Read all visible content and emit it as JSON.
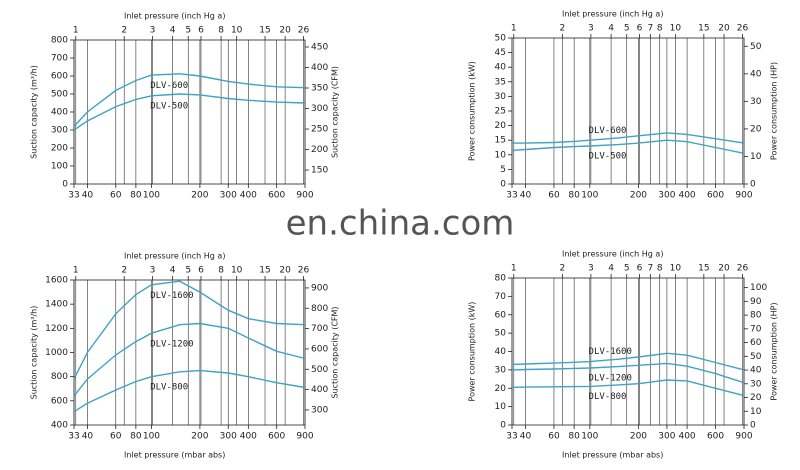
{
  "watermark": "en.china.com",
  "chart_data": [
    {
      "type": "line",
      "x2label": "Inlet pressure (inch Hg a)",
      "ylabel": "Suction capacity (m³/h)",
      "y2label": "Suction capacity (CFM)",
      "xscale": "log",
      "x2scale": "log",
      "grid": "x",
      "color": "#3fa3c4",
      "xlim": [
        33,
        900
      ],
      "xticks": [
        33,
        40,
        60,
        80,
        100,
        200,
        300,
        400,
        600,
        900
      ],
      "x2lim": [
        0.975,
        26.58
      ],
      "x2ticks": [
        1,
        2,
        3,
        4,
        5,
        6,
        8,
        10,
        15,
        20,
        26
      ],
      "ylim": [
        0,
        800
      ],
      "yticks": [
        0,
        100,
        200,
        300,
        400,
        500,
        600,
        700,
        800
      ],
      "y2lim": [
        116,
        467
      ],
      "y2ticks": [
        150,
        200,
        250,
        300,
        350,
        400,
        450
      ],
      "x": [
        33,
        40,
        60,
        80,
        100,
        150,
        200,
        300,
        400,
        600,
        900
      ],
      "series": [
        {
          "name": "DLV-600",
          "color": "#3fa3c4",
          "values": [
            320,
            400,
            520,
            575,
            605,
            612,
            600,
            570,
            555,
            540,
            535
          ]
        },
        {
          "name": "DLV-500",
          "color": "#3fa3c4",
          "values": [
            300,
            350,
            430,
            470,
            490,
            500,
            495,
            475,
            465,
            455,
            450
          ]
        }
      ]
    },
    {
      "type": "line",
      "x2label": "Inlet pressure (inch Hg a)",
      "ylabel": "Power consumption (kW)",
      "y2label": "Power consumption (HP)",
      "xscale": "log",
      "x2scale": "log",
      "grid": "x",
      "color": "#3fa3c4",
      "xlim": [
        33,
        900
      ],
      "xticks": [
        33,
        40,
        60,
        80,
        100,
        200,
        300,
        400,
        600,
        900
      ],
      "x2lim": [
        0.975,
        26.58
      ],
      "x2ticks": [
        1,
        2,
        3,
        4,
        5,
        6,
        7,
        8,
        10,
        15,
        20,
        26
      ],
      "ylim": [
        0,
        50
      ],
      "yticks": [
        0,
        5,
        10,
        15,
        20,
        25,
        30,
        35,
        40,
        45,
        50
      ],
      "y2lim": [
        0,
        53
      ],
      "y2ticks": [
        0,
        10,
        20,
        30,
        40,
        50
      ],
      "x": [
        33,
        40,
        60,
        80,
        100,
        150,
        200,
        300,
        400,
        600,
        900
      ],
      "series": [
        {
          "name": "DLV-600",
          "color": "#3fa3c4",
          "values": [
            14,
            14,
            14.2,
            14.6,
            15,
            15.8,
            16.5,
            17.5,
            17,
            15.5,
            14
          ]
        },
        {
          "name": "DLV-500",
          "color": "#3fa3c4",
          "values": [
            11.5,
            11.8,
            12.5,
            12.8,
            13,
            13.5,
            14,
            15,
            14.5,
            12.5,
            10.5
          ]
        }
      ]
    },
    {
      "type": "line",
      "x2label": "Inlet pressure (inch Hg a)",
      "xlabel": "Inlet pressure (mbar abs)",
      "ylabel": "Suction capacity (m³/h)",
      "y2label": "Suction capacity (CFM)",
      "xscale": "log",
      "x2scale": "log",
      "grid": "x",
      "color": "#3fa3c4",
      "xlim": [
        33,
        900
      ],
      "xticks": [
        33,
        40,
        60,
        80,
        100,
        200,
        300,
        400,
        600,
        900
      ],
      "x2lim": [
        0.975,
        26.58
      ],
      "x2ticks": [
        1,
        2,
        3,
        4,
        5,
        6,
        8,
        10,
        15,
        20,
        26
      ],
      "ylim": [
        400,
        1600
      ],
      "yticks": [
        400,
        600,
        800,
        1000,
        1200,
        1400,
        1600
      ],
      "y2lim": [
        226,
        939
      ],
      "y2ticks": [
        300,
        400,
        500,
        600,
        700,
        800,
        900
      ],
      "x": [
        33,
        40,
        60,
        80,
        100,
        150,
        200,
        300,
        400,
        600,
        900
      ],
      "series": [
        {
          "name": "DLV-1600",
          "color": "#3fa3c4",
          "values": [
            780,
            1000,
            1320,
            1480,
            1560,
            1590,
            1500,
            1350,
            1280,
            1240,
            1230
          ]
        },
        {
          "name": "DLV-1200",
          "color": "#3fa3c4",
          "values": [
            640,
            780,
            980,
            1090,
            1160,
            1230,
            1240,
            1200,
            1120,
            1010,
            950
          ]
        },
        {
          "name": "DLV-800",
          "color": "#3fa3c4",
          "values": [
            510,
            580,
            690,
            760,
            800,
            840,
            850,
            830,
            800,
            750,
            710
          ]
        }
      ]
    },
    {
      "type": "line",
      "x2label": "Inlet pressure (inch Hg a)",
      "xlabel": "Inlet pressure (mbar abs)",
      "ylabel": "Power consumption (kW)",
      "y2label": "Power consumption (HP)",
      "xscale": "log",
      "x2scale": "log",
      "grid": "x",
      "color": "#3fa3c4",
      "xlim": [
        33,
        900
      ],
      "xticks": [
        33,
        40,
        60,
        80,
        100,
        200,
        300,
        400,
        600,
        900
      ],
      "x2lim": [
        0.975,
        26.58
      ],
      "x2ticks": [
        1,
        2,
        3,
        4,
        5,
        6,
        7,
        8,
        10,
        15,
        20,
        26
      ],
      "ylim": [
        0,
        80
      ],
      "yticks": [
        0,
        10,
        20,
        30,
        40,
        50,
        60,
        70,
        80
      ],
      "y2lim": [
        0,
        107
      ],
      "y2ticks": [
        0,
        10,
        20,
        30,
        40,
        50,
        60,
        70,
        80,
        90,
        100
      ],
      "x": [
        33,
        40,
        60,
        80,
        100,
        150,
        200,
        300,
        400,
        600,
        900
      ],
      "series": [
        {
          "name": "DLV-1600",
          "color": "#3fa3c4",
          "values": [
            33,
            33.2,
            33.7,
            34.1,
            34.5,
            35.8,
            37,
            39,
            38,
            34,
            30
          ]
        },
        {
          "name": "DLV-1200",
          "color": "#3fa3c4",
          "values": [
            30,
            30.2,
            30.5,
            30.8,
            31,
            31.8,
            32.5,
            33.5,
            32,
            28,
            23
          ]
        },
        {
          "name": "DLV-800",
          "color": "#3fa3c4",
          "values": [
            20.5,
            20.6,
            20.8,
            20.9,
            21,
            21.8,
            22.5,
            24.5,
            24,
            20,
            16
          ]
        }
      ]
    }
  ]
}
